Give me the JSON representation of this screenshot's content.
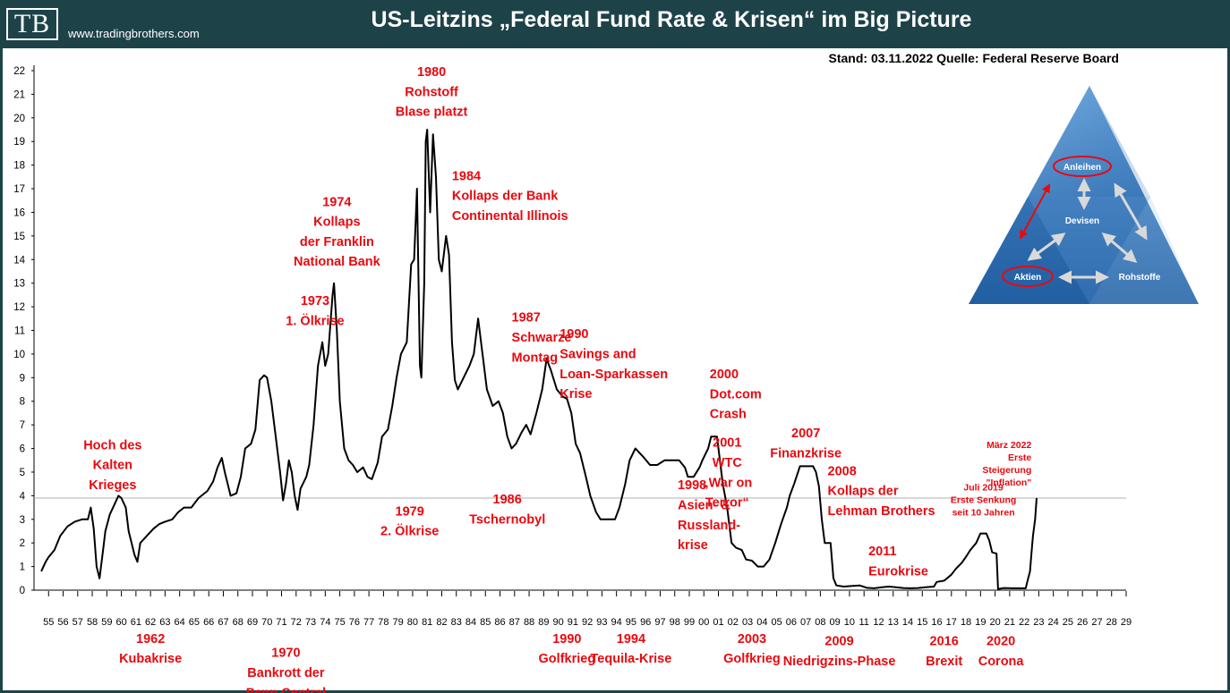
{
  "header": {
    "logo": "TB",
    "site": "www.tradingbrothers.com",
    "title": "US-Leitzins „Federal Fund Rate & Krisen“ im Big Picture",
    "stand": "Stand: 03.11.2022   Quelle: Federal Reserve Board"
  },
  "colors": {
    "header": "#1d4349",
    "annotation": "#e8090f",
    "line": "#000000",
    "reference": "#b0b0b0"
  },
  "pyramid": {
    "top": "Anleihen",
    "center": "Devisen",
    "left": "Aktien",
    "right": "Rohstoffe"
  },
  "chart_data": {
    "type": "line",
    "title": "US-Leitzins „Federal Fund Rate & Krisen“ im Big Picture",
    "xlabel": "",
    "ylabel": "",
    "ylim": [
      0,
      22
    ],
    "xlim": [
      1954,
      2029
    ],
    "y_ticks": [
      "0",
      "1",
      "2",
      "3",
      "4",
      "5",
      "6",
      "7",
      "8",
      "9",
      "10",
      "11",
      "12",
      "13",
      "14",
      "15",
      "16",
      "17",
      "18",
      "19",
      "20",
      "21",
      "22"
    ],
    "x_ticks": [
      "55",
      "56",
      "57",
      "58",
      "59",
      "60",
      "61",
      "62",
      "63",
      "64",
      "65",
      "66",
      "67",
      "68",
      "69",
      "70",
      "71",
      "72",
      "73",
      "74",
      "75",
      "76",
      "77",
      "78",
      "79",
      "80",
      "81",
      "82",
      "83",
      "84",
      "85",
      "86",
      "87",
      "88",
      "89",
      "90",
      "91",
      "92",
      "93",
      "94",
      "95",
      "96",
      "97",
      "98",
      "99",
      "00",
      "01",
      "02",
      "03",
      "04",
      "05",
      "06",
      "07",
      "08",
      "09",
      "10",
      "11",
      "12",
      "13",
      "14",
      "15",
      "16",
      "17",
      "18",
      "19",
      "20",
      "21",
      "22",
      "23",
      "24",
      "25",
      "26",
      "27",
      "28",
      "29"
    ],
    "reference_line": 3.9,
    "series": [
      {
        "name": "Federal Funds Rate",
        "points": [
          [
            1954.5,
            0.8
          ],
          [
            1954.8,
            1.2
          ],
          [
            1955.0,
            1.4
          ],
          [
            1955.4,
            1.7
          ],
          [
            1955.8,
            2.3
          ],
          [
            1956.3,
            2.7
          ],
          [
            1956.8,
            2.9
          ],
          [
            1957.3,
            3.0
          ],
          [
            1957.7,
            3.0
          ],
          [
            1957.9,
            3.5
          ],
          [
            1958.1,
            2.6
          ],
          [
            1958.3,
            1.0
          ],
          [
            1958.5,
            0.5
          ],
          [
            1958.7,
            1.5
          ],
          [
            1958.9,
            2.5
          ],
          [
            1959.2,
            3.2
          ],
          [
            1959.5,
            3.6
          ],
          [
            1959.8,
            4.0
          ],
          [
            1960.0,
            3.9
          ],
          [
            1960.3,
            3.5
          ],
          [
            1960.5,
            2.5
          ],
          [
            1960.7,
            2.0
          ],
          [
            1960.9,
            1.5
          ],
          [
            1961.1,
            1.2
          ],
          [
            1961.3,
            2.0
          ],
          [
            1961.6,
            2.2
          ],
          [
            1961.9,
            2.4
          ],
          [
            1962.2,
            2.6
          ],
          [
            1962.6,
            2.8
          ],
          [
            1963.0,
            2.9
          ],
          [
            1963.5,
            3.0
          ],
          [
            1963.9,
            3.3
          ],
          [
            1964.3,
            3.5
          ],
          [
            1964.8,
            3.5
          ],
          [
            1965.3,
            3.9
          ],
          [
            1965.9,
            4.2
          ],
          [
            1966.3,
            4.6
          ],
          [
            1966.6,
            5.2
          ],
          [
            1966.9,
            5.6
          ],
          [
            1967.1,
            5.0
          ],
          [
            1967.5,
            4.0
          ],
          [
            1967.9,
            4.1
          ],
          [
            1968.2,
            4.8
          ],
          [
            1968.5,
            6.0
          ],
          [
            1968.9,
            6.2
          ],
          [
            1969.2,
            6.8
          ],
          [
            1969.5,
            8.9
          ],
          [
            1969.8,
            9.1
          ],
          [
            1970.0,
            9.0
          ],
          [
            1970.3,
            8.0
          ],
          [
            1970.6,
            6.5
          ],
          [
            1970.9,
            5.0
          ],
          [
            1971.1,
            3.8
          ],
          [
            1971.3,
            4.5
          ],
          [
            1971.5,
            5.5
          ],
          [
            1971.7,
            5.0
          ],
          [
            1971.9,
            4.0
          ],
          [
            1972.1,
            3.4
          ],
          [
            1972.3,
            4.3
          ],
          [
            1972.7,
            4.8
          ],
          [
            1972.9,
            5.3
          ],
          [
            1973.2,
            7.0
          ],
          [
            1973.5,
            9.5
          ],
          [
            1973.8,
            10.5
          ],
          [
            1974.0,
            9.5
          ],
          [
            1974.2,
            10.0
          ],
          [
            1974.5,
            12.5
          ],
          [
            1974.6,
            13.0
          ],
          [
            1974.8,
            11.0
          ],
          [
            1975.0,
            8.0
          ],
          [
            1975.3,
            6.0
          ],
          [
            1975.6,
            5.5
          ],
          [
            1975.9,
            5.3
          ],
          [
            1976.2,
            5.0
          ],
          [
            1976.6,
            5.2
          ],
          [
            1976.9,
            4.8
          ],
          [
            1977.2,
            4.7
          ],
          [
            1977.6,
            5.4
          ],
          [
            1977.9,
            6.5
          ],
          [
            1978.3,
            6.8
          ],
          [
            1978.6,
            7.8
          ],
          [
            1978.9,
            9.0
          ],
          [
            1979.2,
            10.0
          ],
          [
            1979.6,
            10.5
          ],
          [
            1979.9,
            13.8
          ],
          [
            1980.1,
            14.0
          ],
          [
            1980.3,
            17.0
          ],
          [
            1980.5,
            9.5
          ],
          [
            1980.6,
            9.0
          ],
          [
            1980.8,
            13.0
          ],
          [
            1980.9,
            19.0
          ],
          [
            1981.0,
            19.5
          ],
          [
            1981.2,
            16.0
          ],
          [
            1981.4,
            19.3
          ],
          [
            1981.6,
            17.5
          ],
          [
            1981.8,
            14.0
          ],
          [
            1982.0,
            13.5
          ],
          [
            1982.3,
            15.0
          ],
          [
            1982.5,
            14.2
          ],
          [
            1982.7,
            10.5
          ],
          [
            1982.9,
            8.9
          ],
          [
            1983.1,
            8.5
          ],
          [
            1983.5,
            9.0
          ],
          [
            1983.9,
            9.5
          ],
          [
            1984.2,
            10.0
          ],
          [
            1984.5,
            11.5
          ],
          [
            1984.8,
            10.0
          ],
          [
            1985.1,
            8.5
          ],
          [
            1985.5,
            7.8
          ],
          [
            1985.9,
            8.0
          ],
          [
            1986.2,
            7.5
          ],
          [
            1986.5,
            6.5
          ],
          [
            1986.8,
            6.0
          ],
          [
            1987.1,
            6.2
          ],
          [
            1987.5,
            6.7
          ],
          [
            1987.8,
            7.0
          ],
          [
            1988.1,
            6.6
          ],
          [
            1988.5,
            7.5
          ],
          [
            1988.9,
            8.5
          ],
          [
            1989.2,
            9.8
          ],
          [
            1989.5,
            9.3
          ],
          [
            1989.9,
            8.5
          ],
          [
            1990.3,
            8.2
          ],
          [
            1990.6,
            8.1
          ],
          [
            1990.9,
            7.5
          ],
          [
            1991.2,
            6.2
          ],
          [
            1991.5,
            5.8
          ],
          [
            1991.9,
            4.8
          ],
          [
            1992.2,
            4.0
          ],
          [
            1992.6,
            3.3
          ],
          [
            1992.9,
            3.0
          ],
          [
            1993.4,
            3.0
          ],
          [
            1993.9,
            3.0
          ],
          [
            1994.2,
            3.5
          ],
          [
            1994.6,
            4.5
          ],
          [
            1994.9,
            5.5
          ],
          [
            1995.3,
            6.0
          ],
          [
            1995.6,
            5.8
          ],
          [
            1995.9,
            5.6
          ],
          [
            1996.3,
            5.3
          ],
          [
            1996.8,
            5.3
          ],
          [
            1997.3,
            5.5
          ],
          [
            1997.8,
            5.5
          ],
          [
            1998.3,
            5.5
          ],
          [
            1998.7,
            5.2
          ],
          [
            1998.9,
            4.8
          ],
          [
            1999.3,
            4.8
          ],
          [
            1999.7,
            5.2
          ],
          [
            1999.9,
            5.5
          ],
          [
            2000.3,
            6.0
          ],
          [
            2000.5,
            6.5
          ],
          [
            2000.9,
            6.5
          ],
          [
            2001.1,
            5.5
          ],
          [
            2001.3,
            4.5
          ],
          [
            2001.6,
            3.5
          ],
          [
            2001.9,
            2.0
          ],
          [
            2002.2,
            1.8
          ],
          [
            2002.6,
            1.7
          ],
          [
            2002.9,
            1.3
          ],
          [
            2003.3,
            1.25
          ],
          [
            2003.7,
            1.0
          ],
          [
            2004.1,
            1.0
          ],
          [
            2004.5,
            1.3
          ],
          [
            2004.9,
            2.0
          ],
          [
            2005.3,
            2.8
          ],
          [
            2005.7,
            3.5
          ],
          [
            2005.9,
            4.0
          ],
          [
            2006.2,
            4.5
          ],
          [
            2006.6,
            5.25
          ],
          [
            2007.0,
            5.25
          ],
          [
            2007.5,
            5.25
          ],
          [
            2007.7,
            5.0
          ],
          [
            2007.9,
            4.4
          ],
          [
            2008.1,
            3.0
          ],
          [
            2008.3,
            2.0
          ],
          [
            2008.7,
            2.0
          ],
          [
            2008.9,
            0.5
          ],
          [
            2009.1,
            0.2
          ],
          [
            2009.6,
            0.15
          ],
          [
            2010.2,
            0.18
          ],
          [
            2010.7,
            0.2
          ],
          [
            2011.2,
            0.1
          ],
          [
            2011.7,
            0.08
          ],
          [
            2012.2,
            0.12
          ],
          [
            2012.7,
            0.15
          ],
          [
            2013.2,
            0.12
          ],
          [
            2013.7,
            0.09
          ],
          [
            2014.2,
            0.08
          ],
          [
            2014.7,
            0.09
          ],
          [
            2015.2,
            0.12
          ],
          [
            2015.8,
            0.15
          ],
          [
            2015.99,
            0.35
          ],
          [
            2016.5,
            0.4
          ],
          [
            2016.99,
            0.65
          ],
          [
            2017.3,
            0.9
          ],
          [
            2017.7,
            1.15
          ],
          [
            2017.99,
            1.4
          ],
          [
            2018.3,
            1.7
          ],
          [
            2018.7,
            2.0
          ],
          [
            2018.99,
            2.4
          ],
          [
            2019.4,
            2.4
          ],
          [
            2019.6,
            2.1
          ],
          [
            2019.8,
            1.6
          ],
          [
            2020.1,
            1.55
          ],
          [
            2020.2,
            0.05
          ],
          [
            2020.6,
            0.09
          ],
          [
            2021.2,
            0.08
          ],
          [
            2021.7,
            0.08
          ],
          [
            2022.1,
            0.08
          ],
          [
            2022.2,
            0.33
          ],
          [
            2022.4,
            0.8
          ],
          [
            2022.5,
            1.6
          ],
          [
            2022.6,
            2.3
          ],
          [
            2022.75,
            3.0
          ],
          [
            2022.84,
            3.8
          ],
          [
            2022.85,
            3.9
          ]
        ]
      }
    ],
    "annotations": [
      {
        "x": 1959.4,
        "y_top": 6.5,
        "lines": [
          "Hoch des",
          "Kalten",
          "Krieges"
        ]
      },
      {
        "x": 1962.0,
        "y_bottom": -1.7,
        "lines": [
          "1962",
          "Kubakrise"
        ]
      },
      {
        "x": 1971.3,
        "y_bottom": -2.3,
        "lines": [
          "1970",
          "Bankrott der",
          "Penn Central"
        ]
      },
      {
        "x": 1973.3,
        "y_top": 12.6,
        "lines": [
          "1973",
          "1. Ölkrise"
        ]
      },
      {
        "x": 1974.8,
        "y_top": 16.8,
        "lines": [
          "1974",
          "Kollaps",
          "der Franklin",
          "National Bank"
        ]
      },
      {
        "x": 1979.8,
        "y_bottom": 3.7,
        "lines": [
          "1979",
          "2. Ölkrise"
        ]
      },
      {
        "x": 1981.3,
        "y_top": 22.3,
        "lines": [
          "1980",
          "Rohstoff",
          "Blase platzt"
        ]
      },
      {
        "x": 1982.7,
        "y_top": 17.9,
        "align": "start",
        "lines": [
          "1984",
          "Kollaps der Bank",
          "Continental Illinois"
        ]
      },
      {
        "x": 1986.8,
        "y_top": 11.9,
        "align": "start",
        "lines": [
          "1987",
          "Schwarze",
          "Montag"
        ]
      },
      {
        "x": 1986.5,
        "y_bottom": 4.2,
        "lines": [
          "1986",
          "Tschernobyl"
        ]
      },
      {
        "x": 1990.1,
        "y_top": 11.2,
        "align": "start",
        "lines": [
          "1990",
          "Savings and",
          "Loan-Sparkassen",
          "Krise"
        ]
      },
      {
        "x": 1990.6,
        "y_bottom": -1.7,
        "lines": [
          "1990",
          "Golfkrieg"
        ]
      },
      {
        "x": 1995.0,
        "y_bottom": -1.7,
        "lines": [
          "1994",
          "Tequila-Krise"
        ]
      },
      {
        "x": 1998.2,
        "y_top": 4.8,
        "align": "start",
        "lines": [
          "1998",
          "Asien- &",
          "Russland-",
          "krise"
        ]
      },
      {
        "x": 2000.4,
        "y_top": 9.5,
        "align": "start",
        "lines": [
          "2000",
          "Dot.com",
          "Crash"
        ]
      },
      {
        "x": 2001.6,
        "y_top": 6.6,
        "lines": [
          "2001",
          "WTC",
          "„War on",
          "Terror“"
        ]
      },
      {
        "x": 2003.3,
        "y_bottom": -1.7,
        "lines": [
          "2003",
          "Golfkrieg"
        ]
      },
      {
        "x": 2007.0,
        "y_top": 7.0,
        "lines": [
          "2007",
          "Finanzkrise"
        ]
      },
      {
        "x": 2008.5,
        "y_top": 5.4,
        "align": "start",
        "lines": [
          "2008",
          "Kollaps der",
          "Lehman Brothers"
        ]
      },
      {
        "x": 2009.3,
        "y_bottom": -1.8,
        "lines": [
          "2009",
          "Niedrigzins-Phase"
        ]
      },
      {
        "x": 2011.3,
        "y_top": 2.0,
        "align": "start",
        "lines": [
          "2011",
          "Eurokrise"
        ]
      },
      {
        "x": 2016.5,
        "y_bottom": -1.8,
        "lines": [
          "2016",
          "Brexit"
        ]
      },
      {
        "x": 2020.4,
        "y_bottom": -1.8,
        "lines": [
          "2020",
          "Corona"
        ]
      },
      {
        "x": 2019.2,
        "y_top": 4.6,
        "small": true,
        "lines": [
          "Juli 2019",
          "Erste Senkung",
          "seit 10 Jahren"
        ]
      },
      {
        "x": 2022.5,
        "y_top": 6.4,
        "small": true,
        "align": "end",
        "lines": [
          "März 2022",
          "Erste",
          "Steigerung",
          "\"Inflation\""
        ]
      }
    ]
  }
}
